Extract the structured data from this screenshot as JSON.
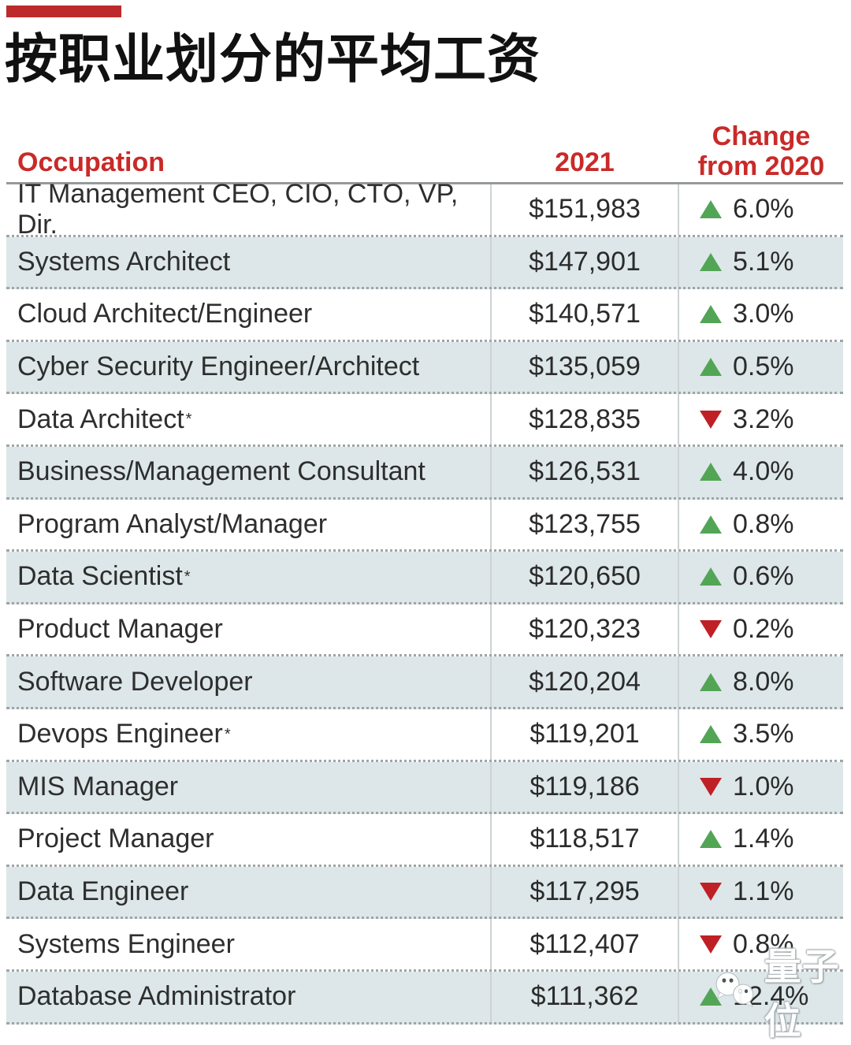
{
  "page": {
    "title": "按职业划分的平均工资"
  },
  "table": {
    "headers": {
      "occupation": "Occupation",
      "year": "2021",
      "change_line1": "Change",
      "change_line2": "from 2020"
    },
    "rows": [
      {
        "occupation": "IT Management CEO, CIO, CTO, VP, Dir.",
        "asterisk": false,
        "salary": "$151,983",
        "direction": "up",
        "change": "6.0%"
      },
      {
        "occupation": "Systems Architect",
        "asterisk": false,
        "salary": "$147,901",
        "direction": "up",
        "change": "5.1%"
      },
      {
        "occupation": "Cloud Architect/Engineer",
        "asterisk": false,
        "salary": "$140,571",
        "direction": "up",
        "change": "3.0%"
      },
      {
        "occupation": "Cyber Security Engineer/Architect",
        "asterisk": false,
        "salary": "$135,059",
        "direction": "up",
        "change": "0.5%"
      },
      {
        "occupation": "Data Architect",
        "asterisk": true,
        "salary": "$128,835",
        "direction": "down",
        "change": "3.2%"
      },
      {
        "occupation": "Business/Management Consultant",
        "asterisk": false,
        "salary": "$126,531",
        "direction": "up",
        "change": "4.0%"
      },
      {
        "occupation": "Program Analyst/Manager",
        "asterisk": false,
        "salary": "$123,755",
        "direction": "up",
        "change": "0.8%"
      },
      {
        "occupation": "Data Scientist",
        "asterisk": true,
        "salary": "$120,650",
        "direction": "up",
        "change": "0.6%"
      },
      {
        "occupation": "Product Manager",
        "asterisk": false,
        "salary": "$120,323",
        "direction": "down",
        "change": "0.2%"
      },
      {
        "occupation": "Software Developer",
        "asterisk": false,
        "salary": "$120,204",
        "direction": "up",
        "change": "8.0%"
      },
      {
        "occupation": "Devops Engineer",
        "asterisk": true,
        "salary": "$119,201",
        "direction": "up",
        "change": "3.5%"
      },
      {
        "occupation": "MIS Manager",
        "asterisk": false,
        "salary": "$119,186",
        "direction": "down",
        "change": "1.0%"
      },
      {
        "occupation": "Project Manager",
        "asterisk": false,
        "salary": "$118,517",
        "direction": "up",
        "change": "1.4%"
      },
      {
        "occupation": "Data Engineer",
        "asterisk": false,
        "salary": "$117,295",
        "direction": "down",
        "change": "1.1%"
      },
      {
        "occupation": "Systems Engineer",
        "asterisk": false,
        "salary": "$112,407",
        "direction": "down",
        "change": "0.8%"
      },
      {
        "occupation": "Database Administrator",
        "asterisk": false,
        "salary": "$111,362",
        "direction": "up",
        "change": "12.4%"
      }
    ]
  },
  "watermark": {
    "text": "量子位",
    "icon": "chat-bubbles-icon"
  },
  "colors": {
    "accent_bar": "#bd2a2b",
    "header_text": "#c92a28",
    "row_band": "#dde7e9",
    "body_text": "#2e2e2e",
    "up_green": "#53a556",
    "down_red": "#bf2026",
    "divider": "#cdd2d4",
    "solid_line": "#97999b"
  },
  "chart_data": {
    "type": "table",
    "title": "按职业划分的平均工资",
    "columns": [
      "Occupation",
      "2021",
      "Change from 2020"
    ],
    "rows": [
      [
        "IT Management CEO, CIO, CTO, VP, Dir.",
        "$151,983",
        "+6.0%"
      ],
      [
        "Systems Architect",
        "$147,901",
        "+5.1%"
      ],
      [
        "Cloud Architect/Engineer",
        "$140,571",
        "+3.0%"
      ],
      [
        "Cyber Security Engineer/Architect",
        "$135,059",
        "+0.5%"
      ],
      [
        "Data Architect*",
        "$128,835",
        "-3.2%"
      ],
      [
        "Business/Management Consultant",
        "$126,531",
        "+4.0%"
      ],
      [
        "Program Analyst/Manager",
        "$123,755",
        "+0.8%"
      ],
      [
        "Data Scientist*",
        "$120,650",
        "+0.6%"
      ],
      [
        "Product Manager",
        "$120,323",
        "-0.2%"
      ],
      [
        "Software Developer",
        "$120,204",
        "+8.0%"
      ],
      [
        "Devops Engineer*",
        "$119,201",
        "+3.5%"
      ],
      [
        "MIS Manager",
        "$119,186",
        "-1.0%"
      ],
      [
        "Project Manager",
        "$118,517",
        "+1.4%"
      ],
      [
        "Data Engineer",
        "$117,295",
        "-1.1%"
      ],
      [
        "Systems Engineer",
        "$112,407",
        "-0.8%"
      ],
      [
        "Database Administrator",
        "$111,362",
        "+12.4%"
      ]
    ]
  }
}
